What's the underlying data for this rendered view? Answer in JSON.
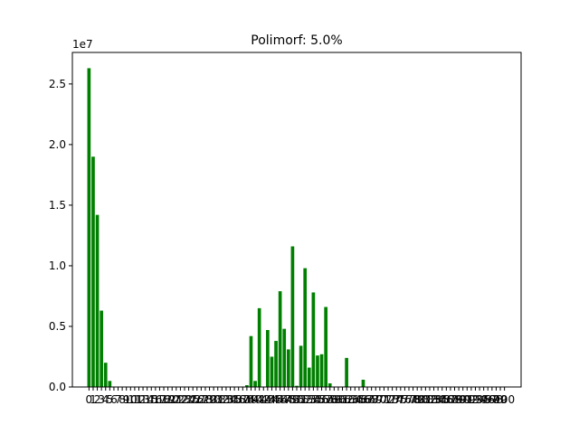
{
  "chart_data": {
    "type": "bar",
    "title": "Polimorf: 5.0%",
    "xlabel": "",
    "ylabel": "",
    "scale_label": "1e7",
    "bar_color": "#008000",
    "x": [
      0,
      1,
      2,
      3,
      4,
      5,
      6,
      7,
      8,
      9,
      10,
      11,
      12,
      13,
      14,
      15,
      16,
      17,
      18,
      19,
      20,
      21,
      22,
      23,
      24,
      25,
      26,
      27,
      28,
      29,
      30,
      31,
      32,
      33,
      34,
      35,
      36,
      37,
      38,
      39,
      40,
      41,
      42,
      43,
      44,
      45,
      46,
      47,
      48,
      49,
      50,
      51,
      52,
      53,
      54,
      55,
      56,
      57,
      58,
      59,
      60,
      61,
      62,
      63,
      64,
      65,
      66,
      67,
      68,
      69,
      70,
      71,
      72,
      73,
      74,
      75,
      76,
      77,
      78,
      79,
      80,
      81,
      82,
      83,
      84,
      85,
      86,
      87,
      88,
      89,
      90,
      91,
      92,
      93,
      94,
      95,
      96,
      97,
      98,
      99,
      100
    ],
    "values_1e7": [
      2.63,
      1.9,
      1.42,
      0.63,
      0.2,
      0.05,
      0,
      0,
      0,
      0,
      0,
      0,
      0,
      0,
      0,
      0,
      0,
      0,
      0,
      0,
      0,
      0,
      0,
      0,
      0,
      0,
      0,
      0,
      0,
      0,
      0,
      0,
      0,
      0,
      0,
      0,
      0,
      0,
      0.015,
      0.42,
      0.05,
      0.65,
      0,
      0.47,
      0.25,
      0.38,
      0.79,
      0.48,
      0.31,
      1.16,
      0.01,
      0.34,
      0.98,
      0.16,
      0.78,
      0.26,
      0.27,
      0.66,
      0.03,
      0,
      0,
      0,
      0.24,
      0,
      0,
      0,
      0.06,
      0,
      0,
      0,
      0,
      0,
      0,
      0,
      0,
      0,
      0,
      0,
      0,
      0,
      0,
      0,
      0,
      0,
      0,
      0,
      0,
      0,
      0,
      0,
      0,
      0,
      0,
      0,
      0,
      0,
      0,
      0,
      0,
      0,
      0
    ],
    "y_ticks": [
      "0.0",
      "0.5",
      "1.0",
      "1.5",
      "2.0",
      "2.5"
    ],
    "x_ticks": [
      "0",
      "1",
      "2",
      "3",
      "4",
      "5",
      "6",
      "7",
      "8",
      "9",
      "10",
      "11",
      "12",
      "13",
      "14",
      "15",
      "16",
      "17",
      "18",
      "19",
      "20",
      "21",
      "22",
      "23",
      "24",
      "25",
      "26",
      "27",
      "28",
      "29",
      "30",
      "31",
      "32",
      "33",
      "34",
      "35",
      "36",
      "37",
      "38",
      "39",
      "40",
      "41",
      "42",
      "43",
      "44",
      "45",
      "46",
      "47",
      "48",
      "49",
      "50",
      "51",
      "52",
      "53",
      "54",
      "55",
      "56",
      "57",
      "58",
      "59",
      "60",
      "61",
      "62",
      "63",
      "64",
      "65",
      "66",
      "67",
      "68",
      "69",
      "70",
      "71",
      "72",
      "73",
      "74",
      "75",
      "76",
      "77",
      "78",
      "79",
      "80",
      "81",
      "82",
      "83",
      "84",
      "85",
      "86",
      "87",
      "88",
      "89",
      "90",
      "91",
      "92",
      "93",
      "94",
      "95",
      "96",
      "97",
      "98",
      "99",
      "100"
    ],
    "xlim": [
      -4,
      104
    ],
    "ylim": [
      0,
      2.76
    ],
    "grid": false,
    "legend": "none"
  }
}
